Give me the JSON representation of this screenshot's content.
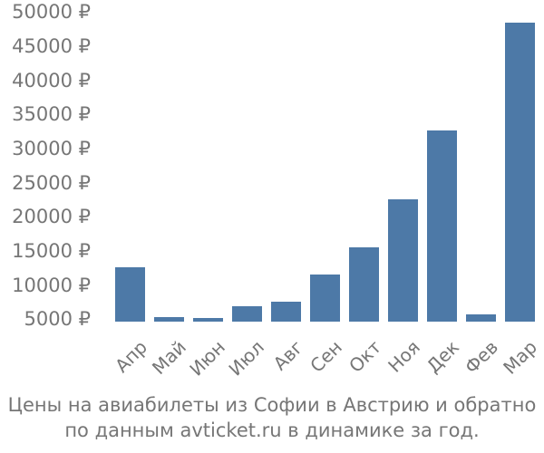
{
  "chart_data": {
    "type": "bar",
    "title": "Цены на авиабилеты из Софии в Австрию и обратно по данным avticket.ru в динамике за год.",
    "categories": [
      "Апр",
      "Май",
      "Июн",
      "Июл",
      "Авг",
      "Сен",
      "Окт",
      "Ноя",
      "Дек",
      "Фев",
      "Мар"
    ],
    "values": [
      12600,
      5300,
      5200,
      6900,
      7600,
      11600,
      15500,
      22600,
      32600,
      5700,
      48400
    ],
    "currency_suffix": " ₽",
    "y_ticks": [
      {
        "value": 5000,
        "label": "5000 ₽"
      },
      {
        "value": 10000,
        "label": "10000 ₽"
      },
      {
        "value": 15000,
        "label": "15000 ₽"
      },
      {
        "value": 20000,
        "label": "20000 ₽"
      },
      {
        "value": 25000,
        "label": "25000 ₽"
      },
      {
        "value": 30000,
        "label": "30000 ₽"
      },
      {
        "value": 35000,
        "label": "35000 ₽"
      },
      {
        "value": 40000,
        "label": "40000 ₽"
      },
      {
        "value": 45000,
        "label": "45000 ₽"
      },
      {
        "value": 50000,
        "label": "50000 ₽"
      }
    ],
    "ylim": [
      4600,
      50000
    ],
    "xlabel": "",
    "ylabel": "",
    "grid": false,
    "legend": false,
    "bar_color": "#4d79a7",
    "text_color": "#767676",
    "background_color": "#ffffff"
  },
  "caption": {
    "line1": "Цены на авиабилеты из Софии в Австрию и обратно",
    "line2": "по данным avticket.ru в динамике за год."
  }
}
